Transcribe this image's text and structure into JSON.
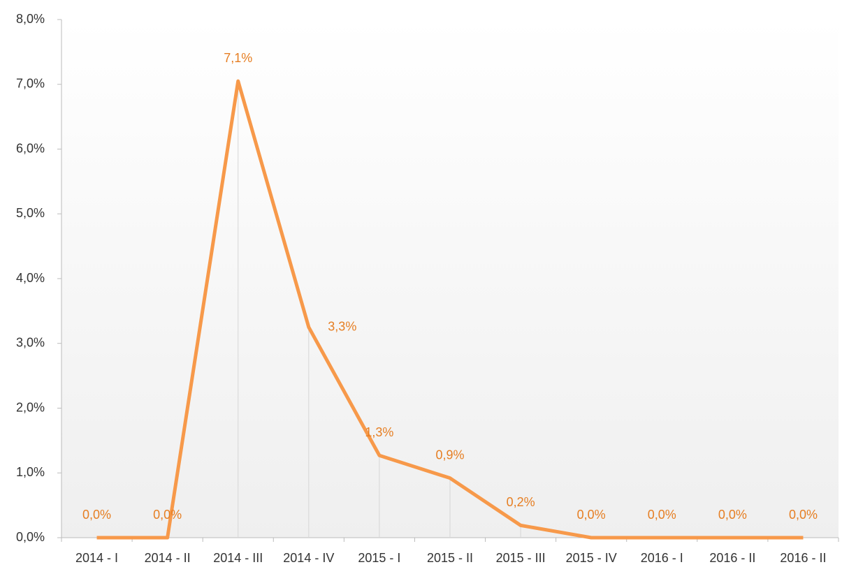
{
  "chart_data": {
    "type": "line",
    "categories": [
      "2014 - I",
      "2014 - II",
      "2014 - III",
      "2014 - IV",
      "2015 - I",
      "2015 - II",
      "2015 - III",
      "2015 - IV",
      "2016 - I",
      "2016 - II",
      "2016 - II"
    ],
    "series": [
      {
        "color": "#f7994a",
        "values": [
          0,
          0,
          7.05,
          3.25,
          1.27,
          0.92,
          0.19,
          0,
          0,
          0,
          0
        ],
        "value_labels": [
          "0,0%",
          "0,0%",
          "7,1%",
          "3,3%",
          "1,3%",
          "0,9%",
          "0,2%",
          "0,0%",
          "0,0%",
          "0,0%",
          "0,0%"
        ]
      }
    ],
    "ylim": [
      0,
      8
    ],
    "yticks": [
      {
        "value": 0,
        "label": "0,0%"
      },
      {
        "value": 1,
        "label": "1,0%"
      },
      {
        "value": 2,
        "label": "2,0%"
      },
      {
        "value": 3,
        "label": "3,0%"
      },
      {
        "value": 4,
        "label": "4,0%"
      },
      {
        "value": 5,
        "label": "5,0%"
      },
      {
        "value": 6,
        "label": "6,0%"
      },
      {
        "value": 7,
        "label": "7,0%"
      },
      {
        "value": 8,
        "label": "8,0%"
      }
    ]
  }
}
